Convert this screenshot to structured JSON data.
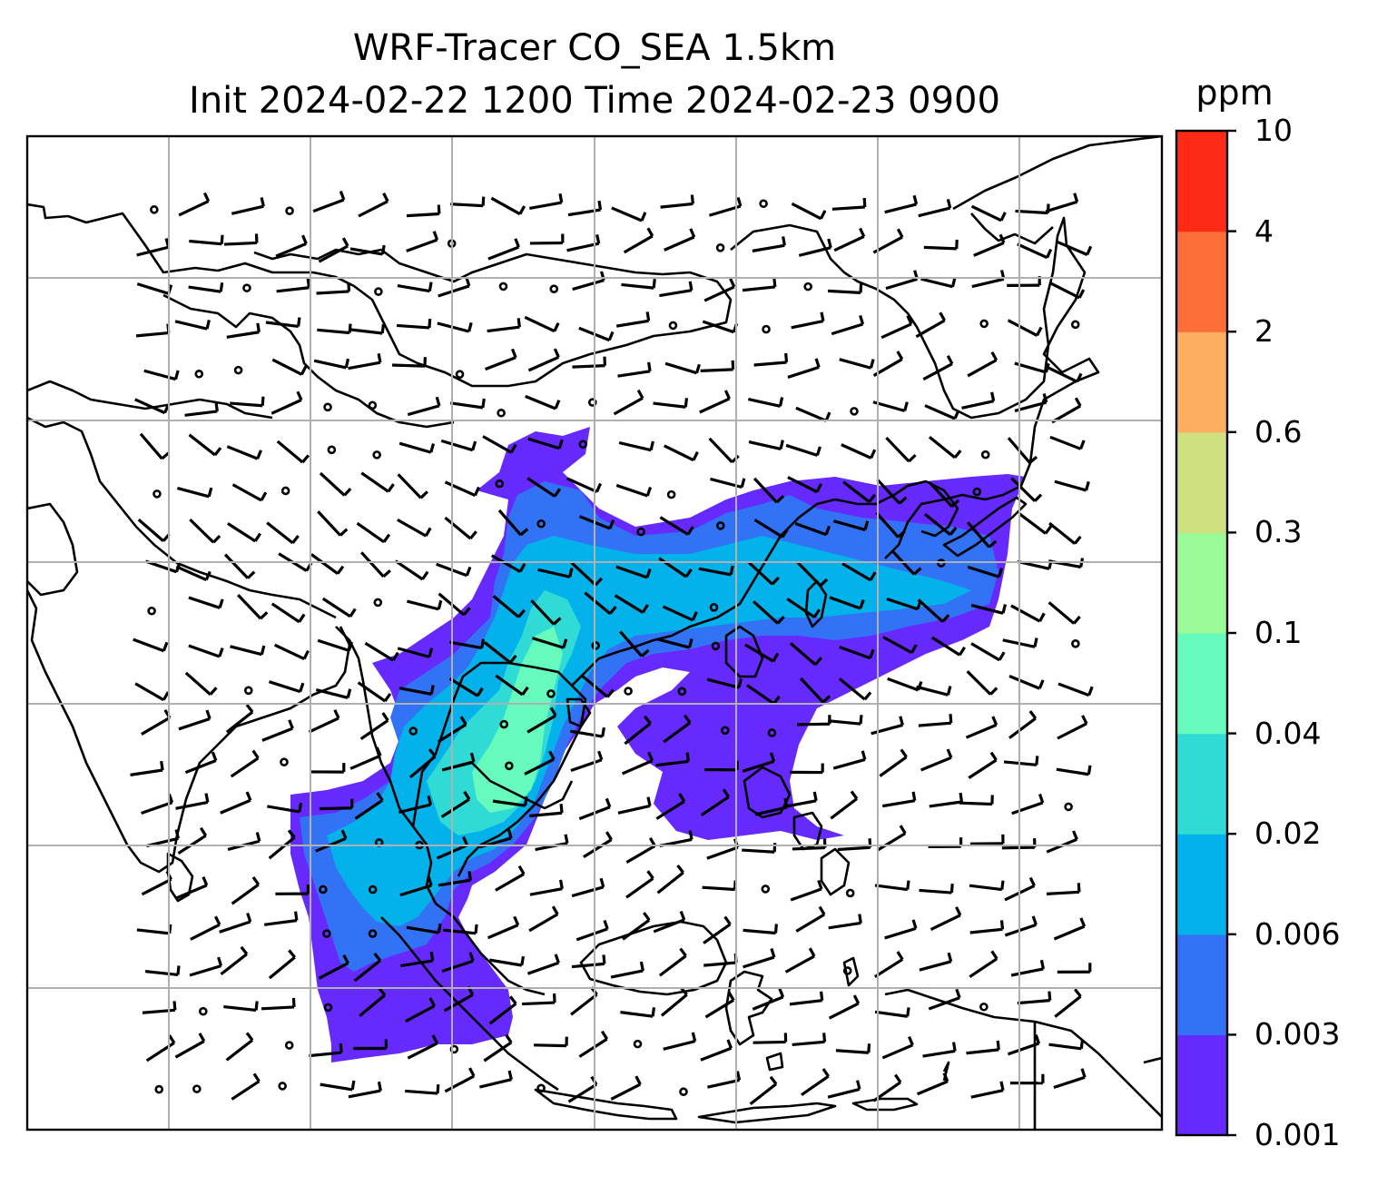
{
  "title": {
    "line1": "WRF-Tracer CO_SEA 1.5km",
    "line2": "Init 2024-02-22 1200 Time 2024-02-23 0900"
  },
  "colorbar": {
    "unit": "ppm",
    "levels": [
      "0.001",
      "0.003",
      "0.006",
      "0.02",
      "0.04",
      "0.1",
      "0.3",
      "0.6",
      "2",
      "4",
      "10"
    ],
    "colors": [
      "#6629fe",
      "#3173f4",
      "#03b2ea",
      "#2fdbd4",
      "#66fbbc",
      "#9afa98",
      "#cfe17e",
      "#feae61",
      "#fe6e39",
      "#fe2a16"
    ]
  },
  "map": {
    "frame_color": "#000000",
    "grid_color": "#b0b0b0",
    "coastline_color": "#000000",
    "wind_barb_color": "#000000"
  }
}
